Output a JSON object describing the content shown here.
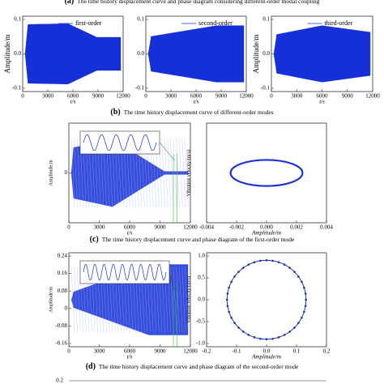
{
  "captions": [
    {
      "label": "(a)",
      "text": "The time history displacement curve and phase diagram considering different-order modal coupling"
    },
    {
      "label": "(b)",
      "text": "The time history displacement curve of different-order modes"
    },
    {
      "label": "(c)",
      "text": "The time history displacement curve and phase diagram of the first-order mode"
    },
    {
      "label": "(d)",
      "text": "The time history displacement curve and phase diagram of the second-order mode"
    }
  ],
  "panels": [
    {
      "ylabel": "Amplitude/m",
      "xlabel": "t/s",
      "yticks": [
        "0.1",
        "0.0",
        "-0.1"
      ],
      "xticks": [
        "0",
        "3000",
        "6000",
        "9000",
        "12000"
      ],
      "legend": "first-order"
    },
    {
      "xlabel": "t/s",
      "yticks": [
        "0.1",
        "0.0",
        "-0.1"
      ],
      "xticks": [
        "0",
        "3000",
        "6000",
        "9000",
        "12000"
      ],
      "legend": "second-order"
    },
    {
      "ylabel": "Amplitude/m",
      "xlabel": "t/s",
      "yticks": [
        "0.1",
        "0.0",
        "-0.1"
      ],
      "xticks": [
        "0",
        "3000",
        "6000",
        "9000",
        "12000"
      ],
      "legend": "third-order"
    },
    {
      "ylabel": "Amplitude/m",
      "xlabel": "t/s",
      "yticks": [
        "0"
      ],
      "xticks": [
        "0",
        "3000",
        "6000",
        "9000",
        "12000"
      ]
    },
    {
      "ylabel": "Vibration velocity/(m/s)",
      "xlabel": "Amplitude/m",
      "xticks": [
        "-0.004",
        "-0.002",
        "0.000",
        "0.002",
        "0.004"
      ]
    },
    {
      "ylabel": "Amplitude/m",
      "xlabel": "t/s",
      "yticks": [
        "0.24",
        "0.16",
        "0.08",
        "0",
        "-0.08",
        "-0.16"
      ],
      "xticks": [
        "0",
        "3000",
        "6000",
        "9000",
        "12000"
      ]
    },
    {
      "ylabel": "Vibration velocity/(m/s)",
      "xlabel": "Amplitude/m",
      "yticks": [
        "1.0",
        "0.5",
        "0.0",
        "-0.5",
        "-1.0"
      ],
      "xticks": [
        "-0.2",
        "-0.1",
        "0.0",
        "0.1",
        "0.2"
      ]
    }
  ],
  "footer_tick": "0.2"
}
